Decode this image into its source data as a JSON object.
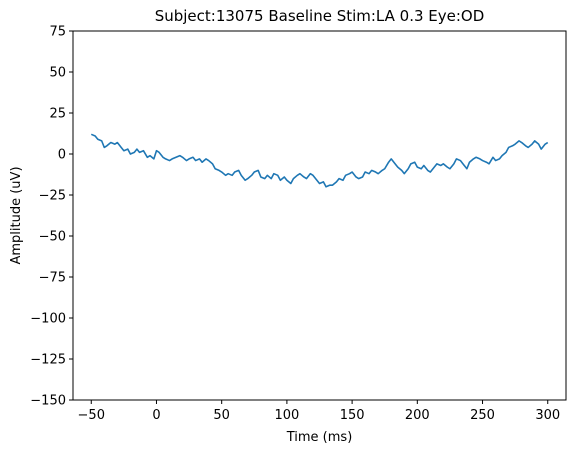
{
  "chart_data": {
    "type": "line",
    "title": "Subject:13075 Baseline Stim:LA 0.3 Eye:OD",
    "xlabel": "Time (ms)",
    "ylabel": "Amplitude (uV)",
    "xlim": [
      -64,
      314
    ],
    "ylim": [
      -150,
      75
    ],
    "xticks": [
      -50,
      0,
      50,
      100,
      150,
      200,
      250,
      300
    ],
    "yticks": [
      75,
      50,
      25,
      0,
      -25,
      -50,
      -75,
      -100,
      -125,
      -150
    ],
    "grid": false,
    "series": [
      {
        "color": "#1f77b4",
        "x": [
          -50,
          -47,
          -45,
          -42,
          -40,
          -38,
          -35,
          -32,
          -30,
          -27,
          -25,
          -22,
          -20,
          -17,
          -15,
          -13,
          -10,
          -7,
          -5,
          -2,
          0,
          2,
          5,
          7,
          10,
          12,
          15,
          18,
          20,
          23,
          25,
          28,
          30,
          33,
          35,
          38,
          40,
          43,
          45,
          48,
          50,
          53,
          55,
          58,
          60,
          63,
          65,
          68,
          70,
          73,
          75,
          78,
          80,
          83,
          85,
          88,
          90,
          93,
          95,
          98,
          100,
          103,
          105,
          108,
          110,
          113,
          115,
          118,
          120,
          123,
          125,
          128,
          130,
          133,
          135,
          138,
          140,
          143,
          145,
          148,
          150,
          153,
          155,
          158,
          160,
          163,
          165,
          168,
          170,
          173,
          175,
          178,
          180,
          183,
          185,
          188,
          190,
          193,
          195,
          198,
          200,
          203,
          205,
          208,
          210,
          213,
          215,
          218,
          220,
          223,
          225,
          228,
          230,
          233,
          235,
          238,
          240,
          243,
          245,
          248,
          250,
          253,
          255,
          258,
          260,
          263,
          265,
          268,
          270,
          273,
          275,
          278,
          280,
          283,
          285,
          288,
          290,
          293,
          295,
          298,
          300
        ],
        "y": [
          12,
          11,
          9,
          8,
          4,
          5,
          7,
          6,
          7,
          4,
          2,
          3,
          0,
          1,
          3,
          1,
          2,
          -2,
          -1,
          -3,
          2,
          1,
          -2,
          -3,
          -4,
          -3,
          -2,
          -1,
          -2,
          -4,
          -3,
          -2,
          -4,
          -3,
          -5,
          -3,
          -4,
          -6,
          -9,
          -10,
          -11,
          -13,
          -12,
          -13,
          -11,
          -10,
          -13,
          -16,
          -15,
          -13,
          -11,
          -10,
          -14,
          -15,
          -13,
          -15,
          -12,
          -13,
          -16,
          -14,
          -16,
          -18,
          -15,
          -13,
          -12,
          -14,
          -15,
          -12,
          -13,
          -16,
          -18,
          -17,
          -20,
          -19,
          -19,
          -17,
          -15,
          -16,
          -13,
          -12,
          -11,
          -14,
          -15,
          -14,
          -11,
          -12,
          -10,
          -11,
          -12,
          -10,
          -9,
          -5,
          -3,
          -6,
          -8,
          -10,
          -12,
          -9,
          -6,
          -5,
          -8,
          -9,
          -7,
          -10,
          -11,
          -8,
          -6,
          -7,
          -6,
          -8,
          -9,
          -6,
          -3,
          -4,
          -6,
          -9,
          -5,
          -3,
          -2,
          -3,
          -4,
          -5,
          -6,
          -2,
          -4,
          -3,
          -1,
          1,
          4,
          5,
          6,
          8,
          7,
          5,
          4,
          6,
          8,
          6,
          3,
          6,
          7
        ]
      }
    ]
  }
}
